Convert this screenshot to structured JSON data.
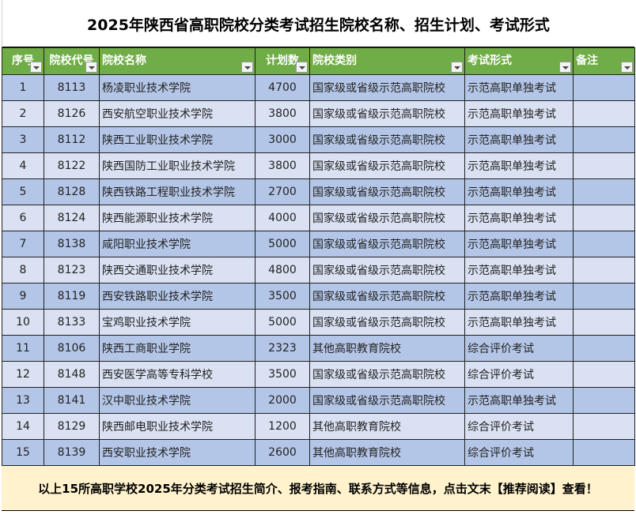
{
  "title": "2025年陕西省高职院校分类考试招生院校名称、招生计划、考试形式",
  "headers": [
    "序号",
    "院校代号",
    "院校名称",
    "计划数",
    "院校类别",
    "考试形式",
    "备注"
  ],
  "rows": [
    [
      "1",
      "8113",
      "杨凌职业技术学院",
      "4700",
      "国家级或省级示范高职院校",
      "示范高职单独考试",
      ""
    ],
    [
      "2",
      "8126",
      "西安航空职业技术学院",
      "3800",
      "国家级或省级示范高职院校",
      "示范高职单独考试",
      ""
    ],
    [
      "3",
      "8112",
      "陕西工业职业技术学院",
      "3000",
      "国家级或省级示范高职院校",
      "示范高职单独考试",
      ""
    ],
    [
      "4",
      "8122",
      "陕西国防工业职业技术学院",
      "3800",
      "国家级或省级示范高职院校",
      "示范高职单独考试",
      ""
    ],
    [
      "5",
      "8128",
      "陕西铁路工程职业技术学院",
      "2700",
      "国家级或省级示范高职院校",
      "示范高职单独考试",
      ""
    ],
    [
      "6",
      "8124",
      "陕西能源职业技术学院",
      "4000",
      "国家级或省级示范高职院校",
      "示范高职单独考试",
      ""
    ],
    [
      "7",
      "8138",
      "咸阳职业技术学院",
      "5000",
      "国家级或省级示范高职院校",
      "示范高职单独考试",
      ""
    ],
    [
      "8",
      "8123",
      "陕西交通职业技术学院",
      "4800",
      "国家级或省级示范高职院校",
      "示范高职单独考试",
      ""
    ],
    [
      "9",
      "8119",
      "西安铁路职业技术学院",
      "3500",
      "国家级或省级示范高职院校",
      "示范高职单独考试",
      ""
    ],
    [
      "10",
      "8133",
      "宝鸡职业技术学院",
      "5000",
      "国家级或省级示范高职院校",
      "示范高职单独考试",
      ""
    ],
    [
      "11",
      "8106",
      "陕西工商职业学院",
      "2323",
      "其他高职教育院校",
      "综合评价考试",
      ""
    ],
    [
      "12",
      "8148",
      "西安医学高等专科学校",
      "3500",
      "国家级或省级示范高职院校",
      "综合评价考试",
      ""
    ],
    [
      "13",
      "8141",
      "汉中职业技术学院",
      "2000",
      "国家级或省级示范高职院校",
      "示范高职单独考试",
      ""
    ],
    [
      "14",
      "8129",
      "陕西邮电职业技术学院",
      "1200",
      "其他高职教育院校",
      "综合评价考试",
      ""
    ],
    [
      "15",
      "8139",
      "西安职业技术学院",
      "2600",
      "其他高职教育院校",
      "综合评价考试",
      ""
    ]
  ],
  "footer": "以上15所高职学校2025年分类考试招生简介、报考指南、联系方式等信息，点击文末【推荐阅读】查看！",
  "colors": {
    "header": "#70ad47",
    "row_dark": "#b4c6e7",
    "row_light": "#d9e1f2",
    "footer": "#fff2cc"
  }
}
